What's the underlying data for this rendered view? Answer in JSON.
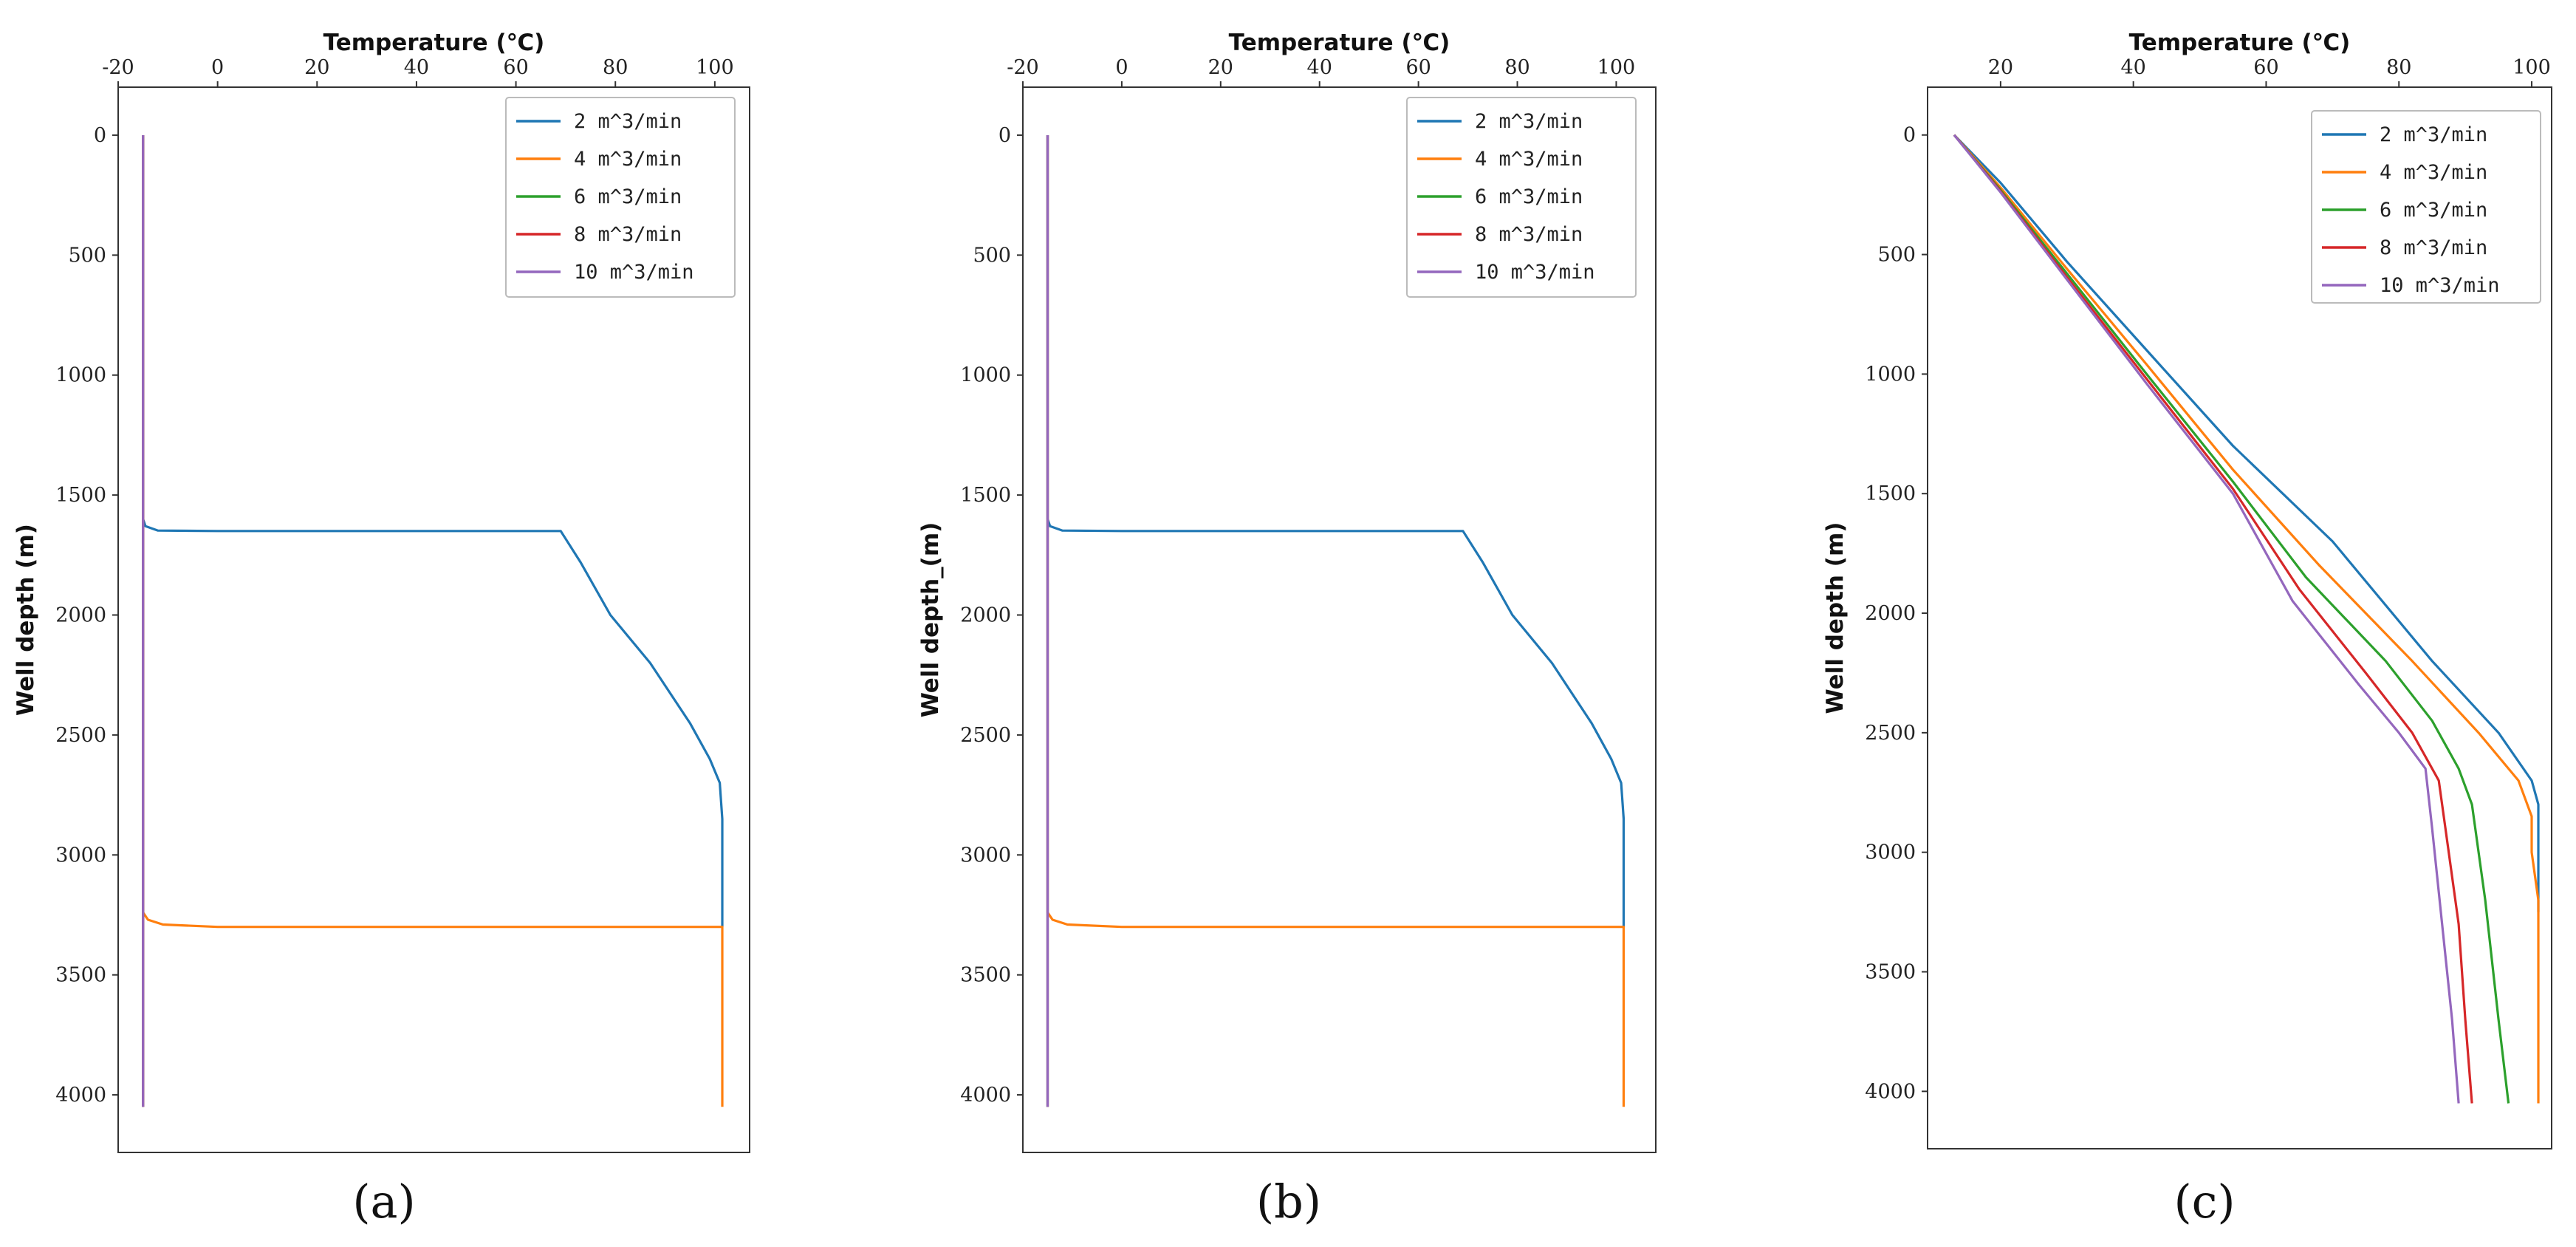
{
  "figure": {
    "colors": {
      "2 m^3/min": "#1f77b4",
      "4 m^3/min": "#ff7f0e",
      "6 m^3/min": "#2ca02c",
      "8 m^3/min": "#d62728",
      "10 m^3/min": "#9467bd"
    }
  },
  "chart_data": [
    {
      "type": "line",
      "panel_label": "(a)",
      "xlabel": "Temperature (℃)",
      "ylabel": "Well depth (m)",
      "xlim": [
        -20,
        107
      ],
      "ylim": [
        4240,
        -200
      ],
      "xticks": [
        -20,
        0,
        20,
        40,
        60,
        80,
        100
      ],
      "yticks": [
        0,
        500,
        1000,
        1500,
        2000,
        2500,
        3000,
        3500,
        4000
      ],
      "legend": "top-right",
      "series": [
        {
          "name": "2 m^3/min",
          "points": [
            [
              -15,
              0
            ],
            [
              -15,
              1600
            ],
            [
              -14.5,
              1630
            ],
            [
              -12,
              1648
            ],
            [
              0,
              1650
            ],
            [
              69,
              1650
            ],
            [
              73,
              1780
            ],
            [
              79,
              2000
            ],
            [
              87,
              2200
            ],
            [
              95,
              2450
            ],
            [
              99,
              2600
            ],
            [
              101,
              2700
            ],
            [
              101.5,
              2850
            ],
            [
              101.5,
              3300
            ]
          ]
        },
        {
          "name": "4 m^3/min",
          "points": [
            [
              -15,
              0
            ],
            [
              -15,
              3240
            ],
            [
              -14,
              3270
            ],
            [
              -11,
              3290
            ],
            [
              0,
              3300
            ],
            [
              101.5,
              3300
            ],
            [
              101.5,
              4050
            ]
          ]
        },
        {
          "name": "6 m^3/min",
          "points": [
            [
              -15,
              0
            ],
            [
              -15,
              4050
            ]
          ]
        },
        {
          "name": "8 m^3/min",
          "points": [
            [
              -15,
              0
            ],
            [
              -15,
              4050
            ]
          ]
        },
        {
          "name": "10 m^3/min",
          "points": [
            [
              -15,
              0
            ],
            [
              -15,
              4050
            ]
          ]
        }
      ]
    },
    {
      "type": "line",
      "panel_label": "(b)",
      "xlabel": "Temperature (℃)",
      "ylabel": "Well depth_(m)",
      "xlim": [
        -20,
        108
      ],
      "ylim": [
        4240,
        -200
      ],
      "xticks": [
        -20,
        0,
        20,
        40,
        60,
        80,
        100
      ],
      "yticks": [
        0,
        500,
        1000,
        1500,
        2000,
        2500,
        3000,
        3500,
        4000
      ],
      "legend": "top-right",
      "series": [
        {
          "name": "2 m^3/min",
          "points": [
            [
              -15,
              0
            ],
            [
              -15,
              1600
            ],
            [
              -14.5,
              1630
            ],
            [
              -12,
              1648
            ],
            [
              0,
              1650
            ],
            [
              69,
              1650
            ],
            [
              73,
              1780
            ],
            [
              79,
              2000
            ],
            [
              87,
              2200
            ],
            [
              95,
              2450
            ],
            [
              99,
              2600
            ],
            [
              101,
              2700
            ],
            [
              101.5,
              2850
            ],
            [
              101.5,
              3300
            ]
          ]
        },
        {
          "name": "4 m^3/min",
          "points": [
            [
              -15,
              0
            ],
            [
              -15,
              3240
            ],
            [
              -14,
              3270
            ],
            [
              -11,
              3290
            ],
            [
              0,
              3300
            ],
            [
              101.5,
              3300
            ],
            [
              101.5,
              4050
            ]
          ]
        },
        {
          "name": "6 m^3/min",
          "points": [
            [
              -15,
              0
            ],
            [
              -15,
              4050
            ]
          ]
        },
        {
          "name": "8 m^3/min",
          "points": [
            [
              -15,
              0
            ],
            [
              -15,
              4050
            ]
          ]
        },
        {
          "name": "10 m^3/min",
          "points": [
            [
              -15,
              0
            ],
            [
              -15,
              4050
            ]
          ]
        }
      ]
    },
    {
      "type": "line",
      "panel_label": "(c)",
      "xlabel": "Temperature (℃)",
      "ylabel": "Well depth (m)",
      "xlim": [
        9,
        103
      ],
      "ylim": [
        4240,
        -200
      ],
      "xticks": [
        20,
        40,
        60,
        80,
        100
      ],
      "yticks": [
        0,
        500,
        1000,
        1500,
        2000,
        2500,
        3000,
        3500,
        4000
      ],
      "legend": "top-right",
      "series": [
        {
          "name": "2 m^3/min",
          "points": [
            [
              13,
              0
            ],
            [
              20,
              200
            ],
            [
              30,
              530
            ],
            [
              42,
              900
            ],
            [
              55,
              1300
            ],
            [
              70,
              1700
            ],
            [
              85,
              2200
            ],
            [
              95,
              2500
            ],
            [
              100,
              2700
            ],
            [
              101,
              2800
            ],
            [
              101,
              3250
            ]
          ]
        },
        {
          "name": "4 m^3/min",
          "points": [
            [
              13,
              0
            ],
            [
              20,
              220
            ],
            [
              30,
              560
            ],
            [
              42,
              960
            ],
            [
              55,
              1400
            ],
            [
              68,
              1800
            ],
            [
              82,
              2200
            ],
            [
              92,
              2500
            ],
            [
              98,
              2700
            ],
            [
              100,
              2850
            ],
            [
              100,
              3000
            ],
            [
              101,
              3200
            ],
            [
              101,
              4050
            ]
          ]
        },
        {
          "name": "6 m^3/min",
          "points": [
            [
              13,
              0
            ],
            [
              20,
              230
            ],
            [
              30,
              580
            ],
            [
              42,
              1000
            ],
            [
              55,
              1450
            ],
            [
              66,
              1850
            ],
            [
              78,
              2200
            ],
            [
              85,
              2450
            ],
            [
              89,
              2650
            ],
            [
              91,
              2800
            ],
            [
              93,
              3200
            ],
            [
              95,
              3700
            ],
            [
              96.5,
              4050
            ]
          ]
        },
        {
          "name": "8 m^3/min",
          "points": [
            [
              13,
              0
            ],
            [
              20,
              235
            ],
            [
              30,
              595
            ],
            [
              42,
              1020
            ],
            [
              55,
              1480
            ],
            [
              65,
              1900
            ],
            [
              75,
              2250
            ],
            [
              82,
              2500
            ],
            [
              86,
              2700
            ],
            [
              87,
              2900
            ],
            [
              89,
              3300
            ],
            [
              90,
              3700
            ],
            [
              91,
              4050
            ]
          ]
        },
        {
          "name": "10 m^3/min",
          "points": [
            [
              13,
              0
            ],
            [
              20,
              240
            ],
            [
              30,
              605
            ],
            [
              42,
              1040
            ],
            [
              55,
              1500
            ],
            [
              64,
              1950
            ],
            [
              74,
              2300
            ],
            [
              80,
              2500
            ],
            [
              84,
              2650
            ],
            [
              85,
              2900
            ],
            [
              86.5,
              3300
            ],
            [
              88,
              3700
            ],
            [
              89,
              4050
            ]
          ]
        }
      ]
    }
  ]
}
